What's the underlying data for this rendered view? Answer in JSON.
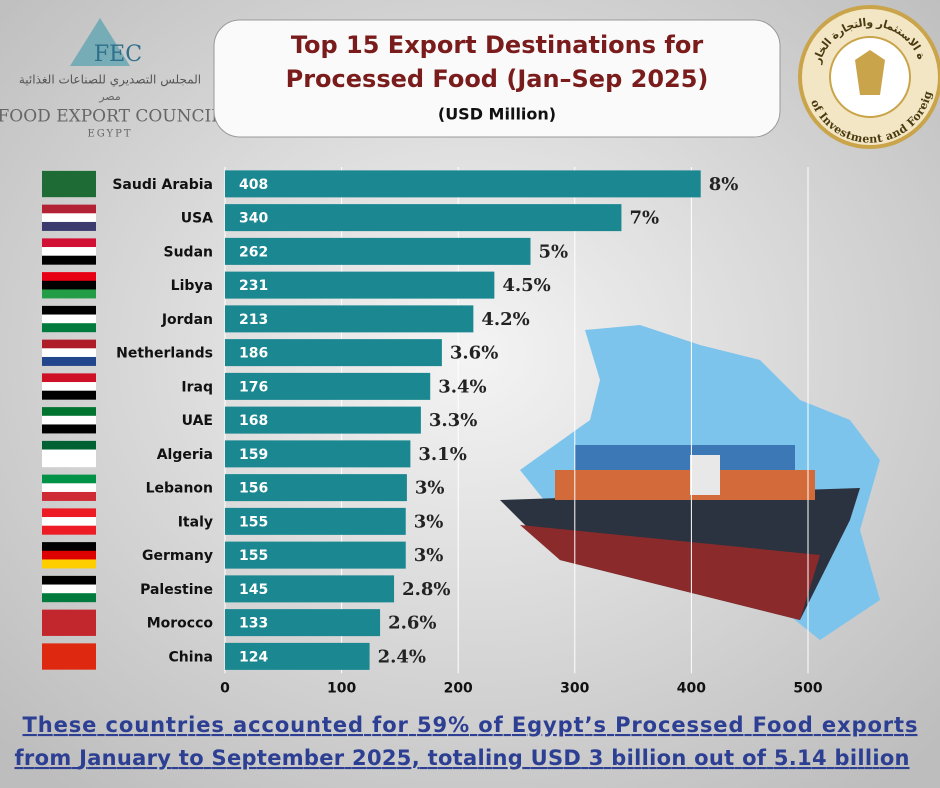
{
  "logo": {
    "abbr": "FEC",
    "arabic_name": "المجلس التصديري للصناعات الغذائية",
    "arabic_country": "مصر",
    "name": "FOOD EXPORT COUNCIL",
    "country": "EGYPT"
  },
  "seal": {
    "english": "Ministry of Investment and Foreign Trade",
    "arabic": "وزارة الاستثمار والتجارة الخارجية"
  },
  "chart_data": {
    "type": "hbar",
    "title": "Top 15 Export Destinations for Processed Food (Jan–Sep 2025)",
    "subtitle": "(USD Million)",
    "categories": [
      "Saudi Arabia",
      "USA",
      "Sudan",
      "Libya",
      "Jordan",
      "Netherlands",
      "Iraq",
      "UAE",
      "Algeria",
      "Lebanon",
      "Italy",
      "Germany",
      "Palestine",
      "Morocco",
      "China"
    ],
    "values": [
      408,
      340,
      262,
      231,
      213,
      186,
      176,
      168,
      159,
      156,
      155,
      155,
      145,
      133,
      124
    ],
    "shares": [
      "8%",
      "7%",
      "5%",
      "4.5%",
      "4.2%",
      "3.6%",
      "3.4%",
      "3.3%",
      "3.1%",
      "3%",
      "3%",
      "3%",
      "2.8%",
      "2.6%",
      "2.4%"
    ],
    "color": "#1a8791",
    "xlim": [
      0,
      560
    ],
    "xticks": [
      0,
      100,
      200,
      300,
      400,
      500
    ],
    "grid": true
  },
  "footer": [
    "These countries accounted for 59% of Egypt’s Processed Food exports",
    "from January to September 2025, totaling USD 3 billion out of 5.14 billion"
  ]
}
